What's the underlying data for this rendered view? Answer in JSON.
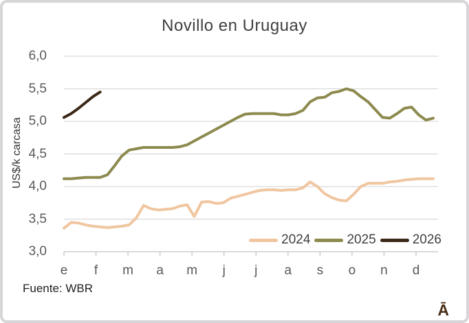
{
  "chart": {
    "title": "Novillo en Uruguay",
    "y_axis_label": "US$/k carcasa",
    "source": "Fuente: WBR",
    "logo": "Ā",
    "colors": {
      "grid": "#d9d9d9",
      "axis": "#c6c4c6",
      "title_text": "#3f3f3f",
      "tick_text": "#595959",
      "border": "#d8d5d8",
      "logo": "#4a2d15"
    }
  },
  "chart_data": {
    "type": "line",
    "title": "Novillo en Uruguay",
    "xlabel": "",
    "ylabel": "US$/k carcasa",
    "ylim": [
      3.0,
      6.0
    ],
    "ytick_step": 0.5,
    "ytick_labels": [
      "6,0",
      "5,5",
      "5,0",
      "4,5",
      "4,0",
      "3,5",
      "3,0"
    ],
    "xtick_labels": [
      "e",
      "f",
      "m",
      "a",
      "m",
      "j",
      "j",
      "a",
      "s",
      "o",
      "n",
      "d"
    ],
    "x_unit": "week (1-52, Jan-Dec)",
    "grid": true,
    "legend_position": "bottom-right-inside",
    "series": [
      {
        "name": "2024",
        "color": "#f0c6a0",
        "start_week": 1,
        "values": [
          3.36,
          3.45,
          3.44,
          3.41,
          3.39,
          3.38,
          3.37,
          3.38,
          3.39,
          3.41,
          3.52,
          3.71,
          3.66,
          3.64,
          3.65,
          3.66,
          3.7,
          3.72,
          3.54,
          3.76,
          3.77,
          3.74,
          3.75,
          3.82,
          3.85,
          3.88,
          3.91,
          3.94,
          3.95,
          3.95,
          3.94,
          3.95,
          3.95,
          3.98,
          4.07,
          4.0,
          3.89,
          3.83,
          3.79,
          3.78,
          3.88,
          4.0,
          4.05,
          4.05,
          4.05,
          4.07,
          4.08,
          4.1,
          4.11,
          4.12,
          4.12,
          4.12
        ]
      },
      {
        "name": "2025",
        "color": "#8c8a4e",
        "start_week": 1,
        "values": [
          4.12,
          4.12,
          4.13,
          4.14,
          4.14,
          4.14,
          4.18,
          4.32,
          4.47,
          4.56,
          4.58,
          4.6,
          4.6,
          4.6,
          4.6,
          4.6,
          4.61,
          4.64,
          4.7,
          4.76,
          4.82,
          4.88,
          4.94,
          5.0,
          5.06,
          5.11,
          5.12,
          5.12,
          5.12,
          5.12,
          5.1,
          5.1,
          5.12,
          5.17,
          5.3,
          5.36,
          5.37,
          5.44,
          5.46,
          5.5,
          5.47,
          5.38,
          5.3,
          5.18,
          5.06,
          5.05,
          5.12,
          5.2,
          5.22,
          5.1,
          5.02,
          5.05
        ]
      },
      {
        "name": "2026",
        "color": "#3c2817",
        "start_week": 1,
        "values": [
          5.06,
          5.12,
          5.2,
          5.29,
          5.38,
          5.45
        ]
      }
    ]
  }
}
